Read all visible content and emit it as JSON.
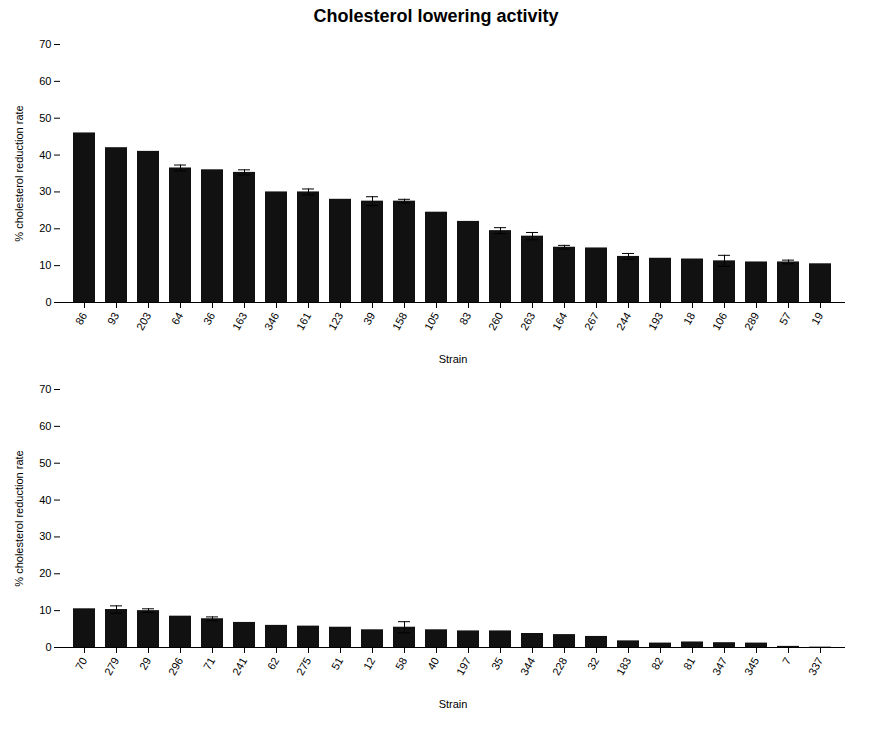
{
  "chart_data": [
    {
      "type": "bar",
      "title": "Cholesterol lowering activity",
      "xlabel": "Strain",
      "ylabel": "% cholesterol reduction rate",
      "categories": [
        "86",
        "93",
        "203",
        "64",
        "36",
        "163",
        "346",
        "161",
        "123",
        "39",
        "158",
        "105",
        "83",
        "260",
        "263",
        "164",
        "267",
        "244",
        "193",
        "18",
        "106",
        "289",
        "57",
        "19"
      ],
      "values": [
        46.0,
        42.0,
        41.0,
        36.5,
        36.0,
        35.3,
        30.0,
        30.0,
        28.0,
        27.5,
        27.5,
        24.5,
        22.0,
        19.5,
        18.0,
        15.0,
        14.8,
        12.5,
        12.0,
        11.8,
        11.3,
        11.0,
        11.0,
        10.5
      ],
      "errors": [
        0.0,
        0.0,
        0.0,
        0.8,
        0.0,
        0.7,
        0.0,
        0.8,
        0.0,
        1.2,
        0.5,
        0.0,
        0.0,
        0.8,
        1.0,
        0.5,
        0.0,
        0.8,
        0.0,
        0.0,
        1.5,
        0.0,
        0.5,
        0.0
      ],
      "color": "#111111",
      "ylim": [
        0,
        70
      ],
      "yticks": [
        0,
        10,
        20,
        30,
        40,
        50,
        60,
        70
      ],
      "grid": false
    },
    {
      "type": "bar",
      "xlabel": "Strain",
      "ylabel": "% cholesterol reduction rate",
      "categories": [
        "70",
        "279",
        "29",
        "296",
        "71",
        "241",
        "62",
        "275",
        "51",
        "12",
        "58",
        "40",
        "197",
        "35",
        "344",
        "228",
        "32",
        "183",
        "82",
        "81",
        "347",
        "345",
        "7",
        "337"
      ],
      "values": [
        10.5,
        10.3,
        10.0,
        8.5,
        7.8,
        6.8,
        6.0,
        5.8,
        5.5,
        4.8,
        5.5,
        4.8,
        4.5,
        4.5,
        3.8,
        3.5,
        3.0,
        1.8,
        1.2,
        1.5,
        1.3,
        1.2,
        0.3,
        0.1
      ],
      "errors": [
        0.0,
        1.0,
        0.5,
        0.0,
        0.5,
        0.0,
        0.0,
        0.0,
        0.0,
        0.0,
        1.5,
        0.0,
        0.0,
        0.0,
        0.0,
        0.0,
        0.0,
        0.0,
        0.0,
        0.0,
        0.0,
        0.0,
        0.0,
        0.0
      ],
      "color": "#111111",
      "ylim": [
        0,
        70
      ],
      "yticks": [
        0,
        10,
        20,
        30,
        40,
        50,
        60,
        70
      ],
      "grid": false
    }
  ]
}
